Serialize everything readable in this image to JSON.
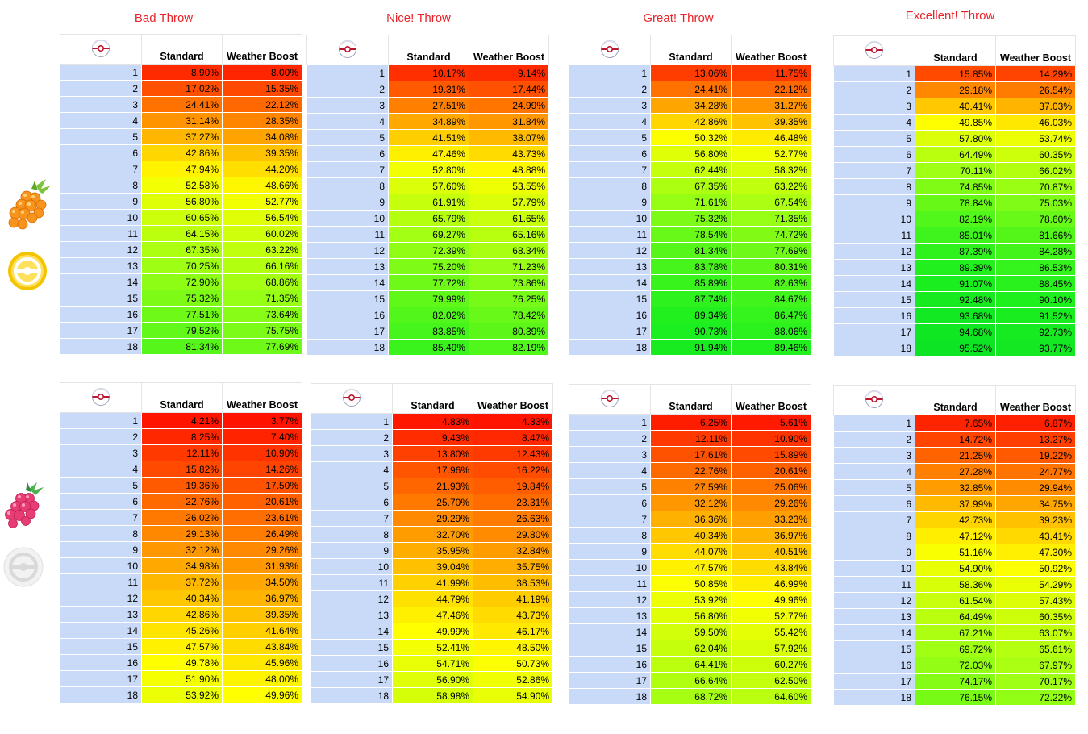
{
  "throw_titles": [
    "Bad Throw",
    "Nice! Throw",
    "Great! Throw",
    "Excellent! Throw"
  ],
  "columns": {
    "standard": "Standard",
    "weather": "Weather Boost"
  },
  "icons": {
    "ball": "premier-ball-icon",
    "berry_top": "golden-razz-berry-icon",
    "medal_top": "gold-medal-icon",
    "berry_bottom": "razz-berry-icon",
    "medal_bottom": "no-medal-icon"
  },
  "tables": [
    {
      "group": "top",
      "throw": 0,
      "standard": [
        "8.90%",
        "17.02%",
        "24.41%",
        "31.14%",
        "37.27%",
        "42.86%",
        "47.94%",
        "52.58%",
        "56.80%",
        "60.65%",
        "64.15%",
        "67.35%",
        "70.25%",
        "72.90%",
        "75.32%",
        "77.51%",
        "79.52%",
        "81.34%"
      ],
      "weather": [
        "8.00%",
        "15.35%",
        "22.12%",
        "28.35%",
        "34.08%",
        "39.35%",
        "44.20%",
        "48.66%",
        "52.77%",
        "56.54%",
        "60.02%",
        "63.22%",
        "66.16%",
        "68.86%",
        "71.35%",
        "73.64%",
        "75.75%",
        "77.69%"
      ]
    },
    {
      "group": "top",
      "throw": 1,
      "standard": [
        "10.17%",
        "19.31%",
        "27.51%",
        "34.89%",
        "41.51%",
        "47.46%",
        "52.80%",
        "57.60%",
        "61.91%",
        "65.79%",
        "69.27%",
        "72.39%",
        "75.20%",
        "77.72%",
        "79.99%",
        "82.02%",
        "83.85%",
        "85.49%"
      ],
      "weather": [
        "9.14%",
        "17.44%",
        "24.99%",
        "31.84%",
        "38.07%",
        "43.73%",
        "48.88%",
        "53.55%",
        "57.79%",
        "61.65%",
        "65.16%",
        "68.34%",
        "71.23%",
        "73.86%",
        "76.25%",
        "78.42%",
        "80.39%",
        "82.19%"
      ]
    },
    {
      "group": "top",
      "throw": 2,
      "standard": [
        "13.06%",
        "24.41%",
        "34.28%",
        "42.86%",
        "50.32%",
        "56.80%",
        "62.44%",
        "67.35%",
        "71.61%",
        "75.32%",
        "78.54%",
        "81.34%",
        "83.78%",
        "85.89%",
        "87.74%",
        "89.34%",
        "90.73%",
        "91.94%"
      ],
      "weather": [
        "11.75%",
        "22.12%",
        "31.27%",
        "39.35%",
        "46.48%",
        "52.77%",
        "58.32%",
        "63.22%",
        "67.54%",
        "71.35%",
        "74.72%",
        "77.69%",
        "80.31%",
        "82.63%",
        "84.67%",
        "86.47%",
        "88.06%",
        "89.46%"
      ]
    },
    {
      "group": "top",
      "throw": 3,
      "standard": [
        "15.85%",
        "29.18%",
        "40.41%",
        "49.85%",
        "57.80%",
        "64.49%",
        "70.11%",
        "74.85%",
        "78.84%",
        "82.19%",
        "85.01%",
        "87.39%",
        "89.39%",
        "91.07%",
        "92.48%",
        "93.68%",
        "94.68%",
        "95.52%"
      ],
      "weather": [
        "14.29%",
        "26.54%",
        "37.03%",
        "46.03%",
        "53.74%",
        "60.35%",
        "66.02%",
        "70.87%",
        "75.03%",
        "78.60%",
        "81.66%",
        "84.28%",
        "86.53%",
        "88.45%",
        "90.10%",
        "91.52%",
        "92.73%",
        "93.77%"
      ]
    },
    {
      "group": "bottom",
      "throw": 0,
      "standard": [
        "4.21%",
        "8.25%",
        "12.11%",
        "15.82%",
        "19.36%",
        "22.76%",
        "26.02%",
        "29.13%",
        "32.12%",
        "34.98%",
        "37.72%",
        "40.34%",
        "42.86%",
        "45.26%",
        "47.57%",
        "49.78%",
        "51.90%",
        "53.92%"
      ],
      "weather": [
        "3.77%",
        "7.40%",
        "10.90%",
        "14.26%",
        "17.50%",
        "20.61%",
        "23.61%",
        "26.49%",
        "29.26%",
        "31.93%",
        "34.50%",
        "36.97%",
        "39.35%",
        "41.64%",
        "43.84%",
        "45.96%",
        "48.00%",
        "49.96%"
      ]
    },
    {
      "group": "bottom",
      "throw": 1,
      "standard": [
        "4.83%",
        "9.43%",
        "13.80%",
        "17.96%",
        "21.93%",
        "25.70%",
        "29.29%",
        "32.70%",
        "35.95%",
        "39.04%",
        "41.99%",
        "44.79%",
        "47.46%",
        "49.99%",
        "52.41%",
        "54.71%",
        "56.90%",
        "58.98%"
      ],
      "weather": [
        "4.33%",
        "8.47%",
        "12.43%",
        "16.22%",
        "19.84%",
        "23.31%",
        "26.63%",
        "29.80%",
        "32.84%",
        "35.75%",
        "38.53%",
        "41.19%",
        "43.73%",
        "46.17%",
        "48.50%",
        "50.73%",
        "52.86%",
        "54.90%"
      ]
    },
    {
      "group": "bottom",
      "throw": 2,
      "standard": [
        "6.25%",
        "12.11%",
        "17.61%",
        "22.76%",
        "27.59%",
        "32.12%",
        "36.36%",
        "40.34%",
        "44.07%",
        "47.57%",
        "50.85%",
        "53.92%",
        "56.80%",
        "59.50%",
        "62.04%",
        "64.41%",
        "66.64%",
        "68.72%"
      ],
      "weather": [
        "5.61%",
        "10.90%",
        "15.89%",
        "20.61%",
        "25.06%",
        "29.26%",
        "33.23%",
        "36.97%",
        "40.51%",
        "43.84%",
        "46.99%",
        "49.96%",
        "52.77%",
        "55.42%",
        "57.92%",
        "60.27%",
        "62.50%",
        "64.60%"
      ]
    },
    {
      "group": "bottom",
      "throw": 3,
      "standard": [
        "7.65%",
        "14.72%",
        "21.25%",
        "27.28%",
        "32.85%",
        "37.99%",
        "42.73%",
        "47.12%",
        "51.16%",
        "54.90%",
        "58.36%",
        "61.54%",
        "64.49%",
        "67.21%",
        "69.72%",
        "72.03%",
        "74.17%",
        "76.15%"
      ],
      "weather": [
        "6.87%",
        "13.27%",
        "19.22%",
        "24.77%",
        "29.94%",
        "34.75%",
        "39.23%",
        "43.41%",
        "47.30%",
        "50.92%",
        "54.29%",
        "57.43%",
        "60.35%",
        "63.07%",
        "65.61%",
        "67.97%",
        "70.17%",
        "72.22%"
      ]
    }
  ]
}
